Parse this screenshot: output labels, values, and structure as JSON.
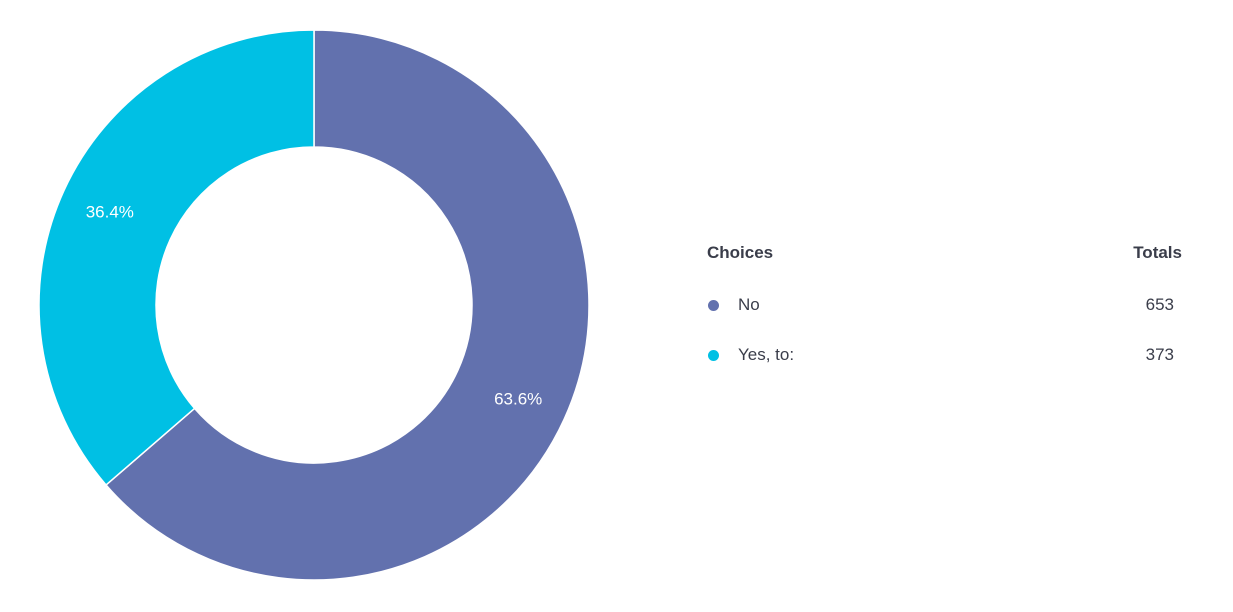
{
  "chart_data": {
    "type": "pie",
    "donut": true,
    "slices": [
      {
        "label": "No",
        "value": 653,
        "percent_label": "63.6%",
        "color": "#6271ae"
      },
      {
        "label": "Yes, to:",
        "value": 373,
        "percent_label": "36.4%",
        "color": "#00c0e4"
      }
    ],
    "legend": {
      "choices_header": "Choices",
      "totals_header": "Totals",
      "placement": "right"
    }
  }
}
